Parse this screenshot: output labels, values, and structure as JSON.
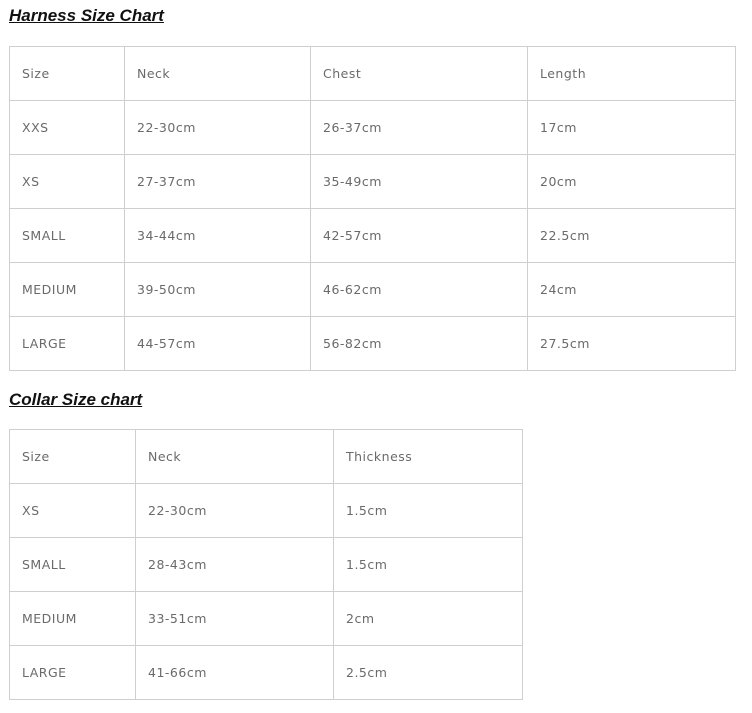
{
  "harness": {
    "title": "Harness Size Chart",
    "headers": [
      "Size",
      "Neck",
      "Chest",
      "Length"
    ],
    "rows": [
      [
        "XXS",
        "22-30cm",
        "26-37cm",
        "17cm"
      ],
      [
        "XS",
        "27-37cm",
        "35-49cm",
        "20cm"
      ],
      [
        "SMALL",
        "34-44cm",
        "42-57cm",
        "22.5cm"
      ],
      [
        "MEDIUM",
        "39-50cm",
        "46-62cm",
        "24cm"
      ],
      [
        "LARGE",
        "44-57cm",
        "56-82cm",
        "27.5cm"
      ]
    ]
  },
  "collar": {
    "title": "Collar Size chart",
    "headers": [
      "Size",
      "Neck",
      "Thickness"
    ],
    "rows": [
      [
        "XS",
        "22-30cm",
        "1.5cm"
      ],
      [
        "SMALL",
        "28-43cm",
        "1.5cm"
      ],
      [
        "MEDIUM",
        "33-51cm",
        "2cm"
      ],
      [
        "LARGE",
        "41-66cm",
        "2.5cm"
      ]
    ]
  }
}
